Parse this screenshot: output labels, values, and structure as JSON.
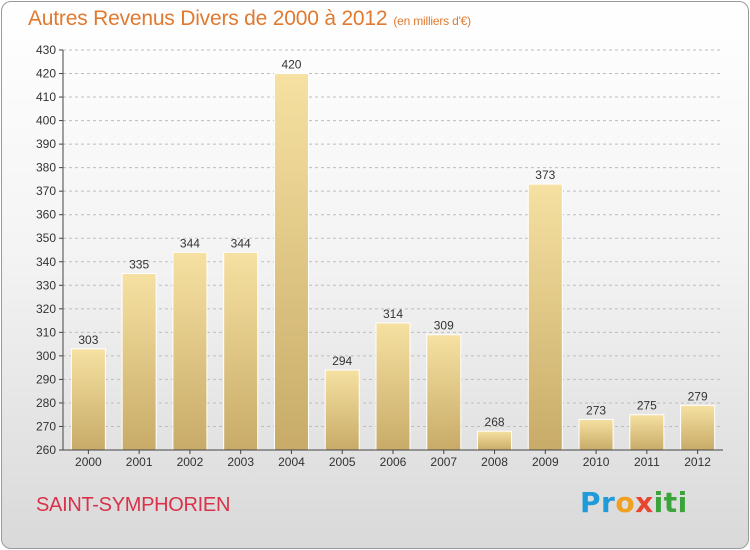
{
  "title": "Autres Revenus Divers de 2000 à 2012",
  "subtitle": "(en milliers d'€)",
  "commune": "SAINT-SYMPHORIEN",
  "brand": {
    "letters": [
      {
        "char": "P",
        "color": "#1f9bd8"
      },
      {
        "char": "r",
        "color": "#1f9bd8"
      },
      {
        "char": "o",
        "color": "#f0a020"
      },
      {
        "char": "x",
        "color": "#e8442e"
      },
      {
        "char": "i",
        "color": "#3aa43a"
      },
      {
        "char": "t",
        "color": "#3aa43a"
      },
      {
        "char": "i",
        "color": "#3aa43a"
      }
    ]
  },
  "colors": {
    "title": "#e07a30",
    "commune": "#d9324a",
    "bar_light": "#f6e1a2",
    "bar_dark": "#c8ab68",
    "axis": "#444444",
    "grid": "#bdbdbd"
  },
  "chart_data": {
    "type": "bar",
    "title": "Autres Revenus Divers de 2000 à 2012",
    "subtitle": "(en milliers d'€)",
    "xlabel": "",
    "ylabel": "",
    "categories": [
      "2000",
      "2001",
      "2002",
      "2003",
      "2004",
      "2005",
      "2006",
      "2007",
      "2008",
      "2009",
      "2010",
      "2011",
      "2012"
    ],
    "values": [
      303,
      335,
      344,
      344,
      420,
      294,
      314,
      309,
      268,
      373,
      273,
      275,
      279
    ],
    "data_labels": [
      "303",
      "335",
      "344",
      "344",
      "420",
      "294",
      "314",
      "309",
      "268",
      "373",
      "273",
      "275",
      "279"
    ],
    "ylim": [
      260,
      430
    ],
    "yticks": [
      260,
      270,
      280,
      290,
      300,
      310,
      320,
      330,
      340,
      350,
      360,
      370,
      380,
      390,
      400,
      410,
      420,
      430
    ],
    "grid": "horizontal dashed",
    "legend": "none"
  }
}
